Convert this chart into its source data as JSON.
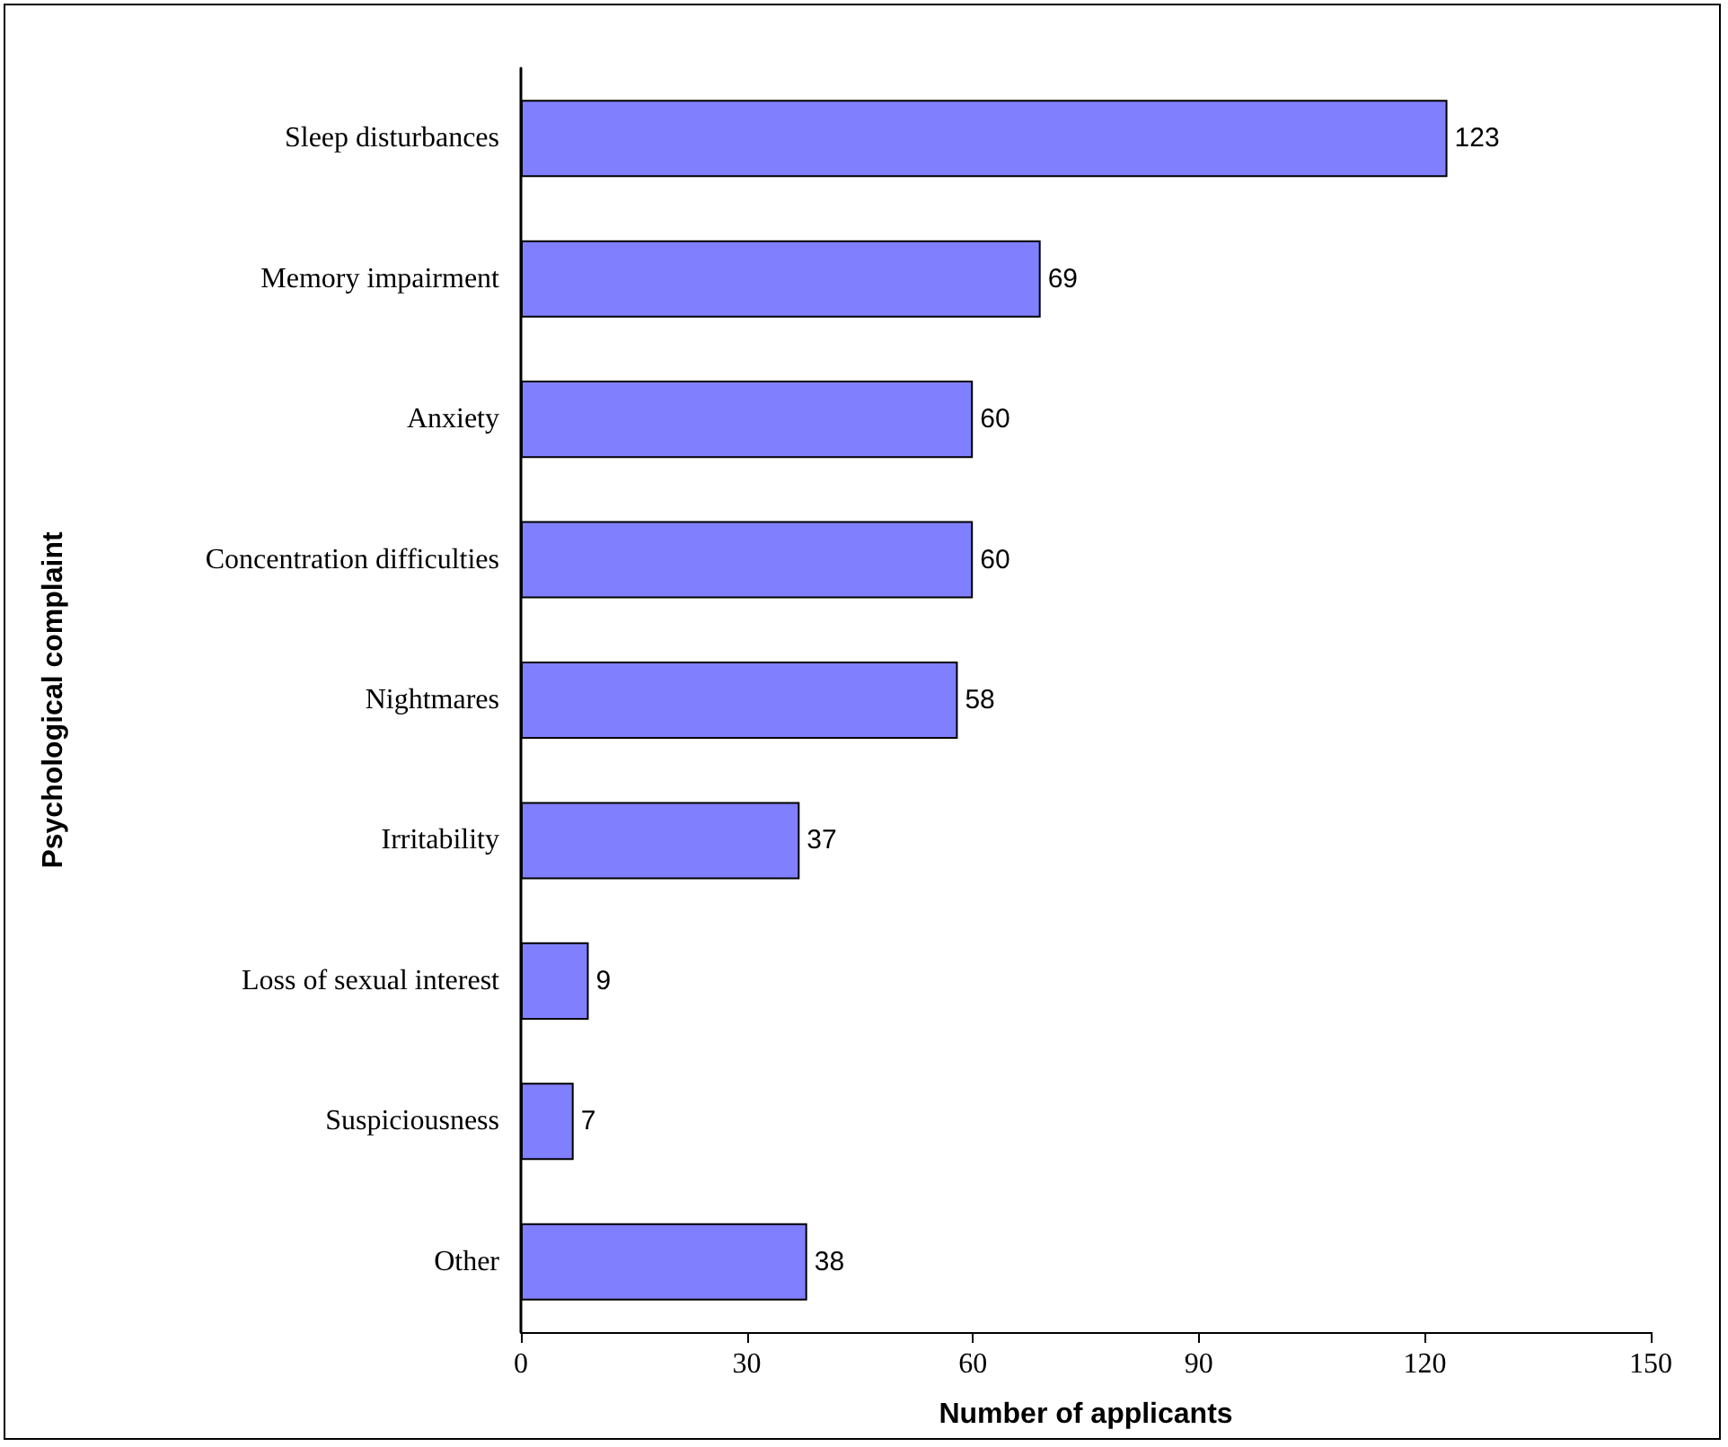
{
  "chart_data": {
    "type": "bar",
    "orientation": "horizontal",
    "xlabel": "Number of applicants",
    "ylabel": "Psychological complaint",
    "categories": [
      "Sleep disturbances",
      "Memory impairment",
      "Anxiety",
      "Concentration difficulties",
      "Nightmares",
      "Irritability",
      "Loss of sexual interest",
      "Suspiciousness",
      "Other"
    ],
    "values": [
      123,
      69,
      60,
      60,
      58,
      37,
      9,
      7,
      38
    ],
    "color": "#8080ff",
    "xlim": [
      0,
      150
    ],
    "xticks": [
      0,
      30,
      60,
      90,
      120,
      150
    ],
    "data_labels": true,
    "grid": false
  }
}
